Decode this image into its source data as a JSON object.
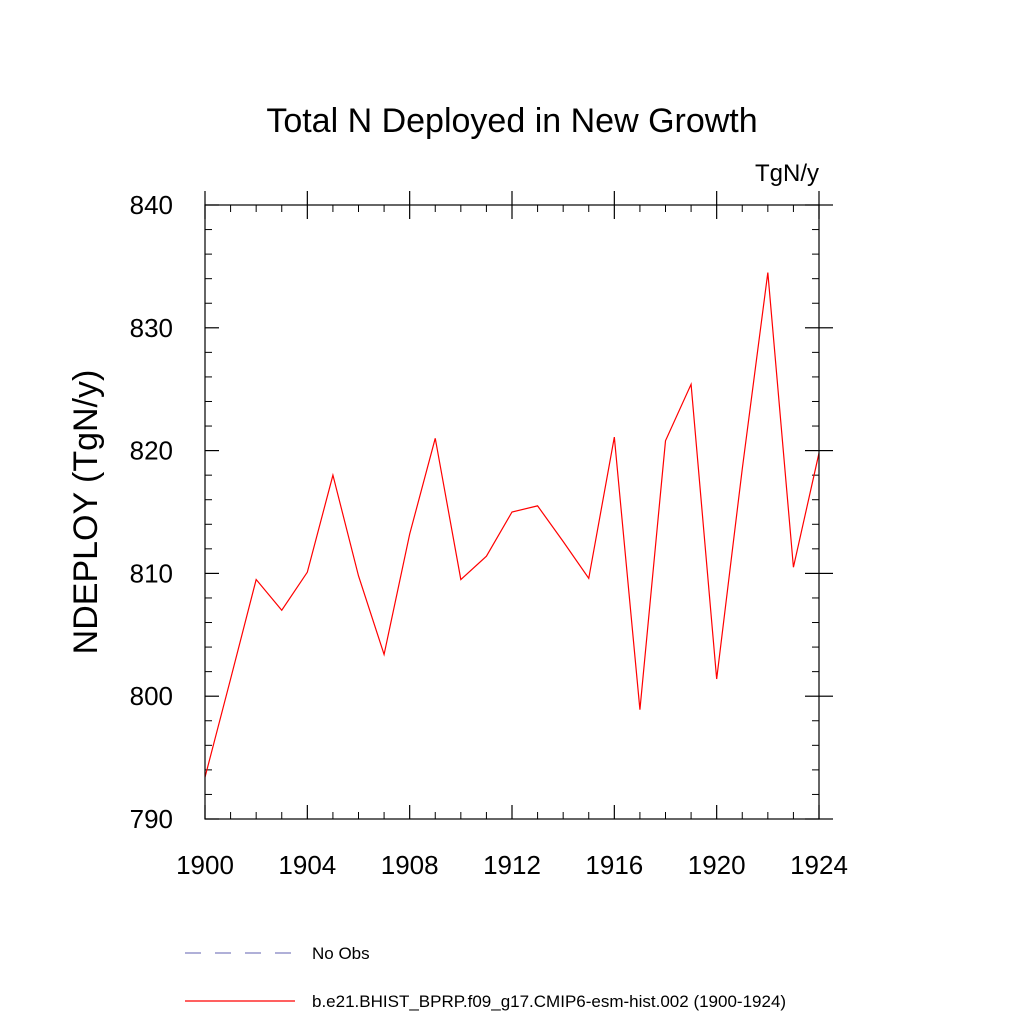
{
  "chart_data": {
    "type": "line",
    "title": "Total N Deployed in New Growth",
    "units_label": "TgN/y",
    "ylabel": "NDEPLOY  (TgN/y)",
    "xlabel": "",
    "xlim": [
      1900,
      1924
    ],
    "ylim": [
      790,
      840
    ],
    "x_ticks": [
      1900,
      1904,
      1908,
      1912,
      1916,
      1920,
      1924
    ],
    "y_ticks": [
      790,
      800,
      810,
      820,
      830,
      840
    ],
    "x_minor_step": 1,
    "y_minor_step": 2,
    "grid": false,
    "legend_position": "bottom",
    "x": [
      1900,
      1901,
      1902,
      1903,
      1904,
      1905,
      1906,
      1907,
      1908,
      1909,
      1910,
      1911,
      1912,
      1913,
      1914,
      1915,
      1916,
      1917,
      1918,
      1919,
      1920,
      1921,
      1922,
      1923,
      1924
    ],
    "series": [
      {
        "name": "b.e21.BHIST_BPRP.f09_g17.CMIP6-esm-hist.002 (1900-1924)",
        "color": "#ff0000",
        "style": "solid",
        "values": [
          793.4,
          801.4,
          809.5,
          807.0,
          810.1,
          818.0,
          809.8,
          803.4,
          813.2,
          821.0,
          809.5,
          811.4,
          815.0,
          815.5,
          812.6,
          809.6,
          821.1,
          798.9,
          820.8,
          825.4,
          801.4,
          818.5,
          834.5,
          810.5,
          819.8
        ]
      }
    ],
    "legend": [
      {
        "label": "No Obs",
        "color": "#8080c0",
        "style": "dashed"
      },
      {
        "label": "b.e21.BHIST_BPRP.f09_g17.CMIP6-esm-hist.002 (1900-1924)",
        "color": "#ff0000",
        "style": "solid"
      }
    ]
  }
}
